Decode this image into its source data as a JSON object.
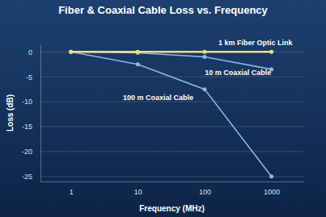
{
  "chart_data": {
    "type": "line",
    "title": "Fiber & Coaxial Cable Loss vs. Frequency",
    "x_label": "Frequency (MHz)",
    "y_label": "Loss (dB)",
    "x": [
      1,
      10,
      100,
      1000
    ],
    "series": [
      {
        "name": "1 km Fiber Optic Link",
        "color": "#f2df7a",
        "marker": "circle",
        "values": [
          0,
          0,
          0,
          0
        ]
      },
      {
        "name": "10 m Coaxial Cable",
        "color": "#8fb6e6",
        "marker": "circle",
        "values": [
          0,
          -0.2,
          -1,
          -3.5
        ]
      },
      {
        "name": "100 m Coaxial Cable",
        "color": "#8fb6e6",
        "marker": "circle",
        "values": [
          0,
          -2.5,
          -7.5,
          -25
        ]
      }
    ],
    "log": "x",
    "xlim": [
      0.35,
      3000
    ],
    "xticks": [
      1,
      10,
      100,
      1000
    ],
    "ylim": [
      -26,
      1.5
    ],
    "yticks": [
      0,
      -5,
      -10,
      -15,
      -20,
      -25
    ],
    "grid": true
  }
}
